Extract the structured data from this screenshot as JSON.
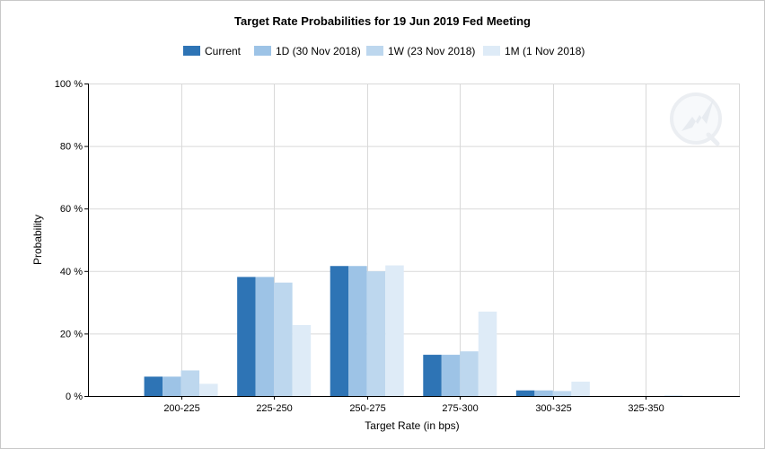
{
  "chart_data": {
    "type": "bar",
    "title": "Target Rate Probabilities for 19 Jun 2019 Fed Meeting",
    "xlabel": "Target Rate (in bps)",
    "ylabel": "Probability",
    "categories": [
      "200-225",
      "225-250",
      "250-275",
      "275-300",
      "300-325",
      "325-350"
    ],
    "ylim": [
      0,
      100
    ],
    "yticks": [
      0,
      20,
      40,
      60,
      80,
      100
    ],
    "ytick_labels": [
      "0 %",
      "20 %",
      "40 %",
      "60 %",
      "80 %",
      "100 %"
    ],
    "grid": true,
    "legend_position": "top-center",
    "series": [
      {
        "name": "Current",
        "color": "#2e74b5",
        "values": [
          6.2,
          38.1,
          41.6,
          13.2,
          1.8,
          0.0
        ]
      },
      {
        "name": "1D (30 Nov 2018)",
        "color": "#9dc3e6",
        "values": [
          6.2,
          38.1,
          41.6,
          13.2,
          1.8,
          0.0
        ]
      },
      {
        "name": "1W (23 Nov 2018)",
        "color": "#bdd7ee",
        "values": [
          8.2,
          36.3,
          39.9,
          14.3,
          1.6,
          0.0
        ]
      },
      {
        "name": "1M (1 Nov 2018)",
        "color": "#deebf7",
        "values": [
          3.9,
          22.7,
          41.8,
          27.0,
          4.6,
          0.3
        ]
      }
    ]
  }
}
